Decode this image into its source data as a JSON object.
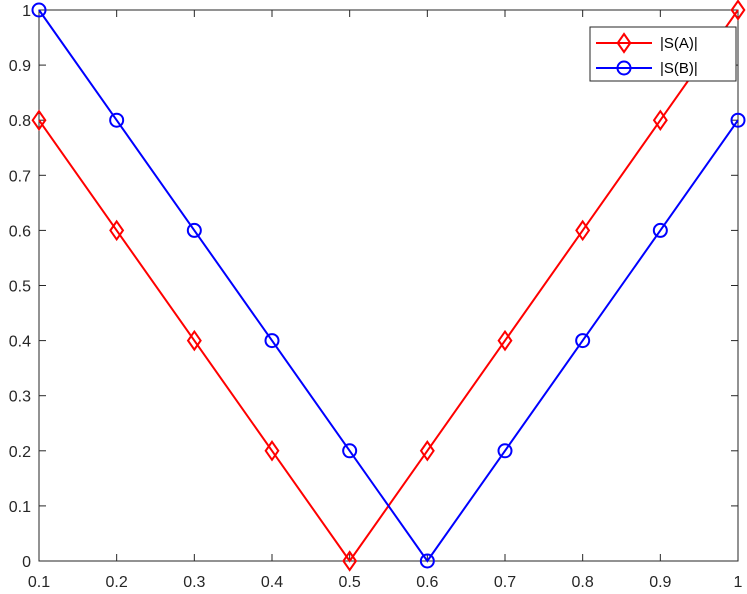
{
  "chart_data": {
    "type": "line",
    "title": "",
    "xlabel": "",
    "ylabel": "",
    "xlim": [
      0.1,
      1
    ],
    "ylim": [
      0,
      1
    ],
    "grid": false,
    "legend_position": "top-right",
    "x": [
      0.1,
      0.2,
      0.3,
      0.4,
      0.5,
      0.6,
      0.7,
      0.8,
      0.9,
      1.0
    ],
    "x_ticks": [
      "0.1",
      "0.2",
      "0.3",
      "0.4",
      "0.5",
      "0.6",
      "0.7",
      "0.8",
      "0.9",
      "1"
    ],
    "y_ticks": [
      "0",
      "0.1",
      "0.2",
      "0.3",
      "0.4",
      "0.5",
      "0.6",
      "0.7",
      "0.8",
      "0.9",
      "1"
    ],
    "series": [
      {
        "name": "|S(A)|",
        "color": "#ff0000",
        "marker": "diamond",
        "values": [
          0.8,
          0.6,
          0.4,
          0.2,
          0.0,
          0.2,
          0.4,
          0.6,
          0.8,
          1.0
        ]
      },
      {
        "name": "|S(B)|",
        "color": "#0000ff",
        "marker": "circle",
        "values": [
          1.0,
          0.8,
          0.6,
          0.4,
          0.2,
          0.0,
          0.2,
          0.4,
          0.6,
          0.8
        ]
      }
    ]
  }
}
